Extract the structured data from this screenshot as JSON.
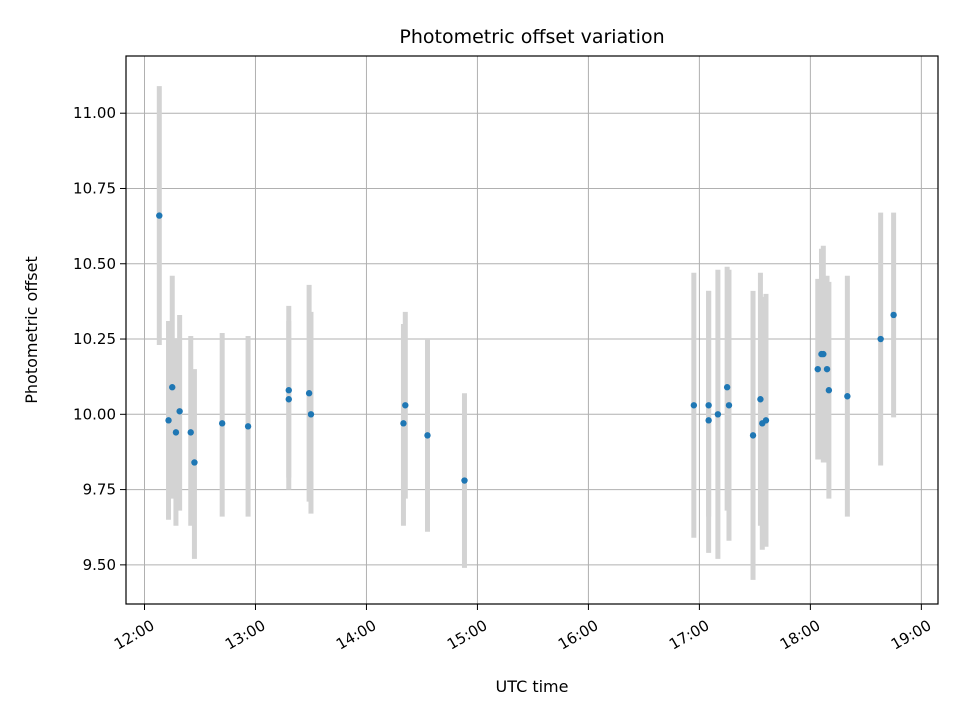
{
  "chart_data": {
    "type": "scatter",
    "title": "Photometric offset variation",
    "xlabel": "UTC time",
    "ylabel": "Photometric offset",
    "x_axis": "time",
    "xlim": [
      "11:50",
      "19:09"
    ],
    "ylim": [
      9.37,
      11.19
    ],
    "x_ticks": [
      "12:00",
      "13:00",
      "14:00",
      "15:00",
      "16:00",
      "17:00",
      "18:00",
      "19:00"
    ],
    "y_ticks": [
      "9.50",
      "9.75",
      "10.00",
      "10.25",
      "10.50",
      "10.75",
      "11.00"
    ],
    "grid": true,
    "legend": "none",
    "marker_color": "#1f77b4",
    "errorbar_color": "#d3d3d3",
    "series": [
      {
        "points": [
          {
            "t": "12:08",
            "y": 10.66,
            "lo": 10.23,
            "hi": 11.09
          },
          {
            "t": "12:13",
            "y": 9.98,
            "lo": 9.65,
            "hi": 10.31
          },
          {
            "t": "12:15",
            "y": 10.09,
            "lo": 9.72,
            "hi": 10.46
          },
          {
            "t": "12:17",
            "y": 9.94,
            "lo": 9.63,
            "hi": 10.25
          },
          {
            "t": "12:19",
            "y": 10.01,
            "lo": 9.68,
            "hi": 10.33
          },
          {
            "t": "12:25",
            "y": 9.94,
            "lo": 9.63,
            "hi": 10.26
          },
          {
            "t": "12:27",
            "y": 9.84,
            "lo": 9.52,
            "hi": 10.15
          },
          {
            "t": "12:42",
            "y": 9.97,
            "lo": 9.66,
            "hi": 10.27
          },
          {
            "t": "12:56",
            "y": 9.96,
            "lo": 9.66,
            "hi": 10.26
          },
          {
            "t": "13:18",
            "y": 10.05,
            "lo": 9.79,
            "hi": 10.31
          },
          {
            "t": "13:18",
            "y": 10.08,
            "lo": 9.75,
            "hi": 10.36
          },
          {
            "t": "13:29",
            "y": 10.07,
            "lo": 9.71,
            "hi": 10.43
          },
          {
            "t": "13:30",
            "y": 10.0,
            "lo": 9.67,
            "hi": 10.34
          },
          {
            "t": "14:20",
            "y": 9.97,
            "lo": 9.63,
            "hi": 10.3
          },
          {
            "t": "14:21",
            "y": 10.03,
            "lo": 9.72,
            "hi": 10.34
          },
          {
            "t": "14:33",
            "y": 9.93,
            "lo": 9.61,
            "hi": 10.25
          },
          {
            "t": "14:53",
            "y": 9.78,
            "lo": 9.49,
            "hi": 10.07
          },
          {
            "t": "16:57",
            "y": 10.03,
            "lo": 9.59,
            "hi": 10.47
          },
          {
            "t": "17:05",
            "y": 9.98,
            "lo": 9.54,
            "hi": 10.41
          },
          {
            "t": "17:05",
            "y": 10.03,
            "lo": 9.66,
            "hi": 10.41
          },
          {
            "t": "17:10",
            "y": 10.0,
            "lo": 9.52,
            "hi": 10.48
          },
          {
            "t": "17:15",
            "y": 10.09,
            "lo": 9.68,
            "hi": 10.49
          },
          {
            "t": "17:16",
            "y": 10.03,
            "lo": 9.58,
            "hi": 10.48
          },
          {
            "t": "17:29",
            "y": 9.93,
            "lo": 9.45,
            "hi": 10.41
          },
          {
            "t": "17:33",
            "y": 10.05,
            "lo": 9.63,
            "hi": 10.47
          },
          {
            "t": "17:34",
            "y": 9.97,
            "lo": 9.55,
            "hi": 10.39
          },
          {
            "t": "17:36",
            "y": 9.98,
            "lo": 9.56,
            "hi": 10.4
          },
          {
            "t": "18:04",
            "y": 10.15,
            "lo": 9.85,
            "hi": 10.45
          },
          {
            "t": "18:06",
            "y": 10.2,
            "lo": 9.85,
            "hi": 10.55
          },
          {
            "t": "18:07",
            "y": 10.2,
            "lo": 9.84,
            "hi": 10.56
          },
          {
            "t": "18:09",
            "y": 10.15,
            "lo": 9.84,
            "hi": 10.46
          },
          {
            "t": "18:10",
            "y": 10.08,
            "lo": 9.72,
            "hi": 10.44
          },
          {
            "t": "18:20",
            "y": 10.06,
            "lo": 9.66,
            "hi": 10.46
          },
          {
            "t": "18:38",
            "y": 10.25,
            "lo": 9.83,
            "hi": 10.67
          },
          {
            "t": "18:45",
            "y": 10.33,
            "lo": 9.99,
            "hi": 10.67
          }
        ]
      }
    ]
  }
}
